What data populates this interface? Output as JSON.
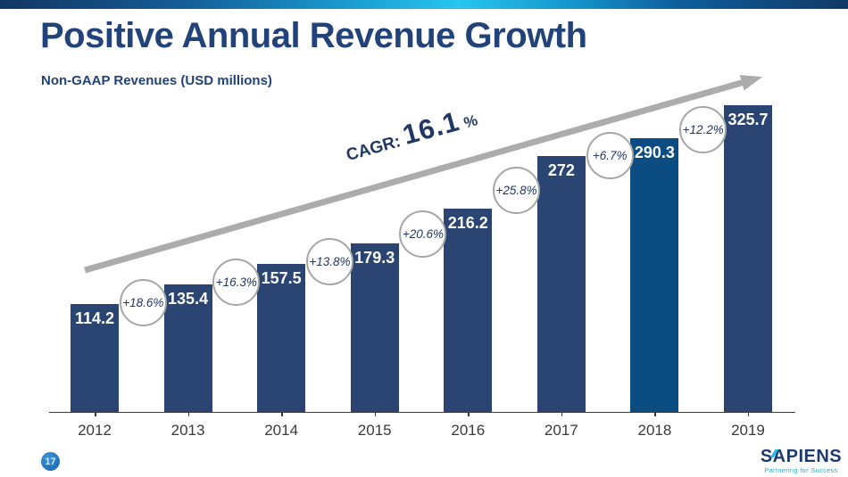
{
  "slide": {
    "title": "Positive Annual Revenue Growth",
    "subtitle": "Non-GAAP Revenues (USD millions)",
    "page_number": "17",
    "logo": {
      "text": "SAPIENS",
      "tagline": "Partnering for Success"
    },
    "colors": {
      "title_navy": "#224379",
      "accent_cyan": "#27c5f0",
      "arrow_gray": "#acacac",
      "circle_border": "#a6a6a6",
      "page_badge_blue": "#1565ab",
      "logo_teal": "#27aec8"
    }
  },
  "chart_data": {
    "type": "bar",
    "title": "Positive Annual Revenue Growth",
    "subtitle": "Non-GAAP Revenues (USD millions)",
    "xlabel": "",
    "ylabel": "Non-GAAP Revenue (USD millions)",
    "categories": [
      "2012",
      "2013",
      "2014",
      "2015",
      "2016",
      "2017",
      "2018",
      "2019"
    ],
    "values": [
      114.2,
      135.4,
      157.5,
      179.3,
      216.2,
      272,
      290.3,
      325.7
    ],
    "value_labels": [
      "114.2",
      "135.4",
      "157.5",
      "179.3",
      "216.2",
      "272",
      "290.3",
      "325.7"
    ],
    "growth_labels": [
      "+18.6%",
      "+16.3%",
      "+13.8%",
      "+20.6%",
      "+25.8%",
      "+6.7%",
      "+12.2%"
    ],
    "cagr": {
      "label": "CAGR:",
      "value": "16.1",
      "suffix": "%"
    },
    "highlighted_category": "2018",
    "bar_color": "#2b4572",
    "highlight_bar_color": "#0b4d82",
    "ylim": [
      0,
      345
    ],
    "grid": false,
    "legend": false,
    "annotation_style": "growth-percent-circles-between-bars, gray trend arrow upward"
  }
}
